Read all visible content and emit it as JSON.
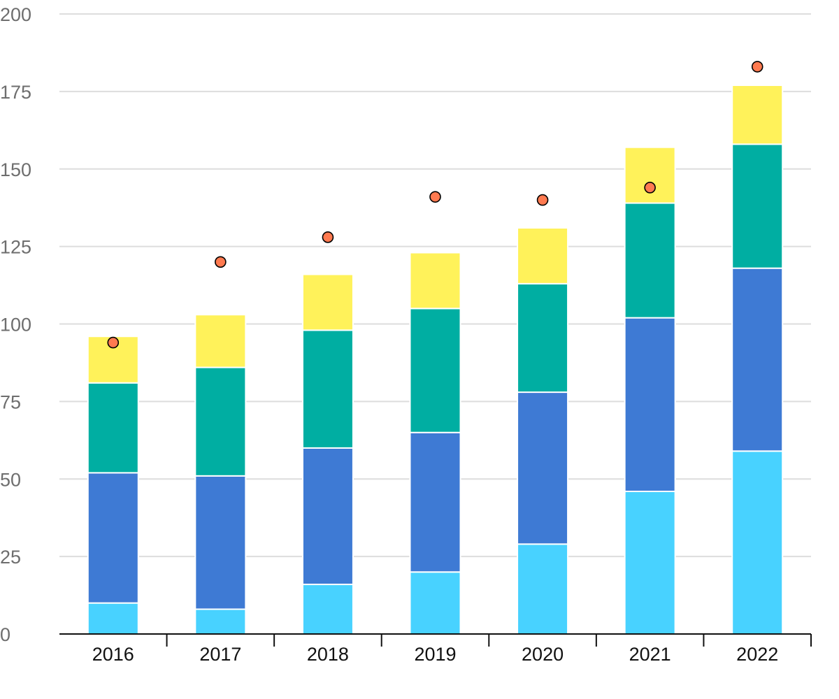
{
  "chart_data": {
    "type": "bar",
    "stacked": true,
    "categories": [
      "2016",
      "2017",
      "2018",
      "2019",
      "2020",
      "2021",
      "2022"
    ],
    "series": [
      {
        "color": "#48d2ff",
        "values": [
          10,
          8,
          16,
          20,
          29,
          46,
          59
        ]
      },
      {
        "color": "#3e7ad4",
        "values": [
          42,
          43,
          44,
          45,
          49,
          56,
          59
        ]
      },
      {
        "color": "#00aea2",
        "values": [
          29,
          35,
          38,
          40,
          35,
          37,
          40
        ]
      },
      {
        "color": "#fff25a",
        "values": [
          15,
          17,
          18,
          18,
          18,
          18,
          19
        ]
      }
    ],
    "markers": {
      "type": "scatter",
      "color": "#ff7a50",
      "values": [
        94,
        120,
        128,
        141,
        140,
        144,
        183
      ]
    },
    "y_ticks": [
      "0",
      "25",
      "50",
      "75",
      "100",
      "125",
      "150",
      "175",
      "200"
    ],
    "ylim": [
      0,
      200
    ],
    "title": "",
    "xlabel": "",
    "ylabel": "",
    "grid": true,
    "legend": "none"
  }
}
